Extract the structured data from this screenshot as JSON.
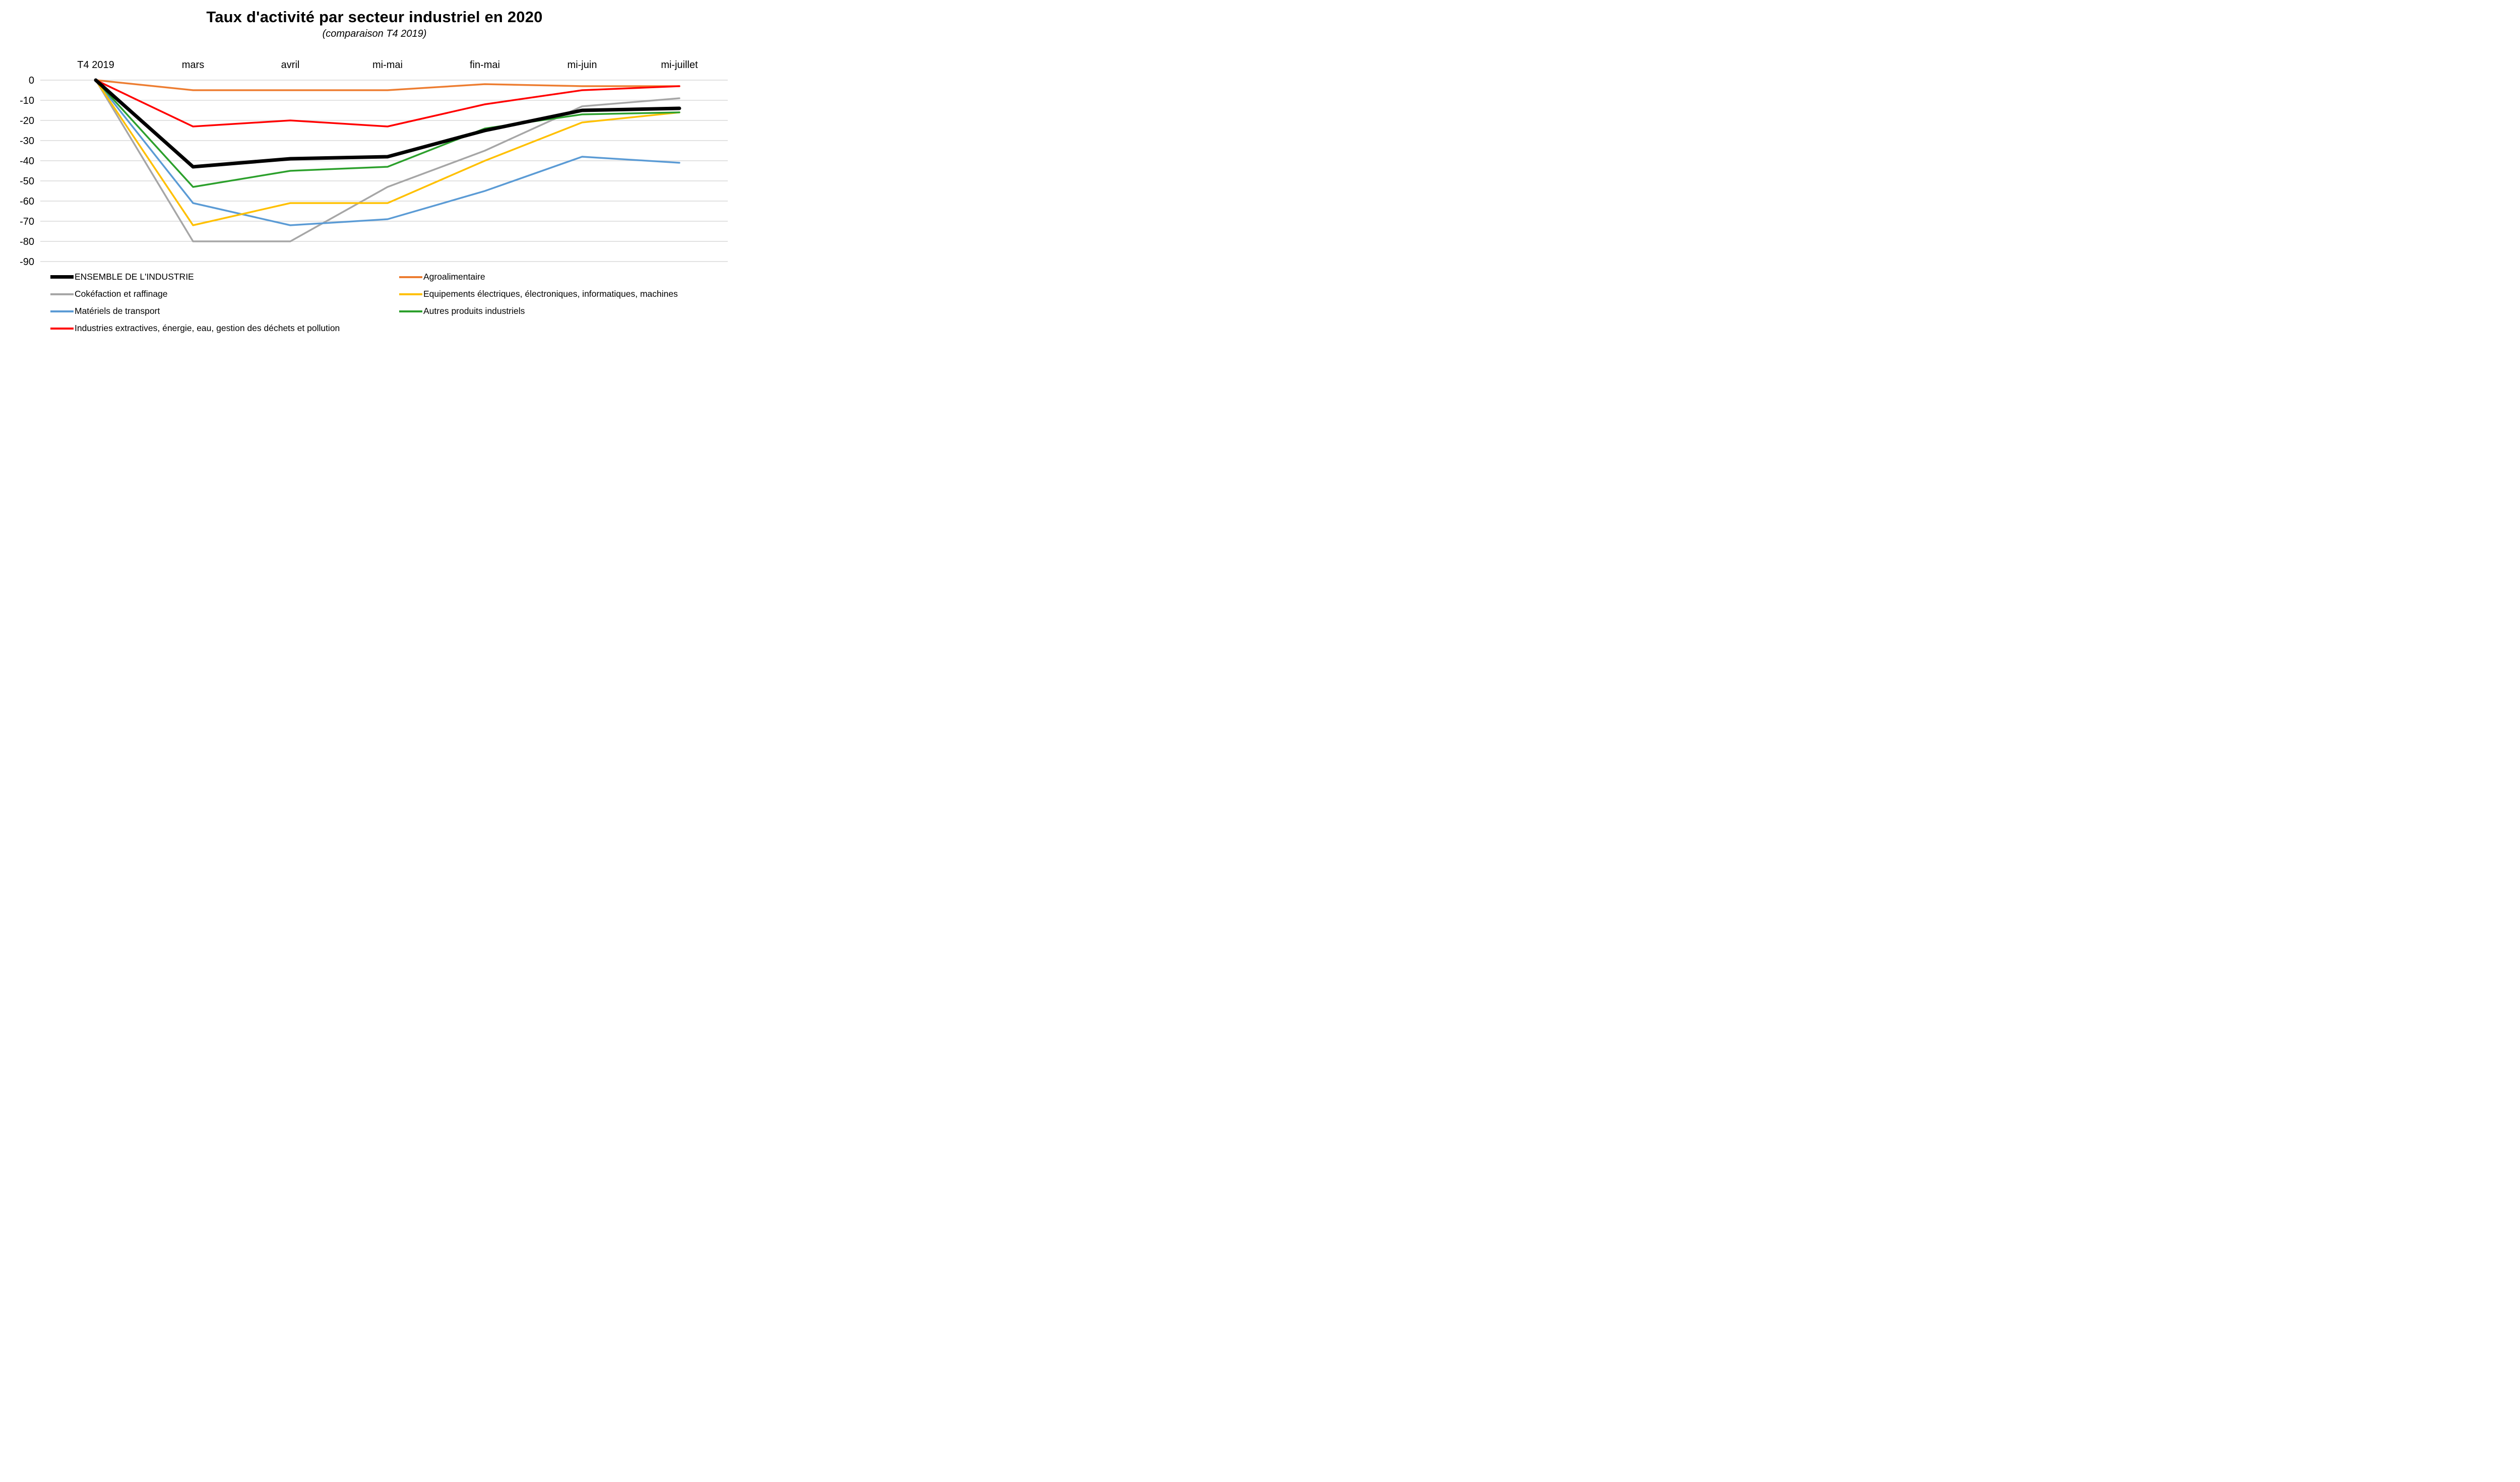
{
  "chart_data": {
    "type": "line",
    "title": "Taux d'activité par secteur industriel en 2020",
    "subtitle": "(comparaison T4 2019)",
    "categories": [
      "T4 2019",
      "mars",
      "avril",
      "mi-mai",
      "fin-mai",
      "mi-juin",
      "mi-juillet"
    ],
    "ylim": [
      -90,
      0
    ],
    "ytick_step": 10,
    "ytick_labels": [
      "0",
      "-10",
      "-20",
      "-30",
      "-40",
      "-50",
      "-60",
      "-70",
      "-80",
      "-90"
    ],
    "grid": true,
    "gridline_color": "#D9D9D9",
    "legend_position": "bottom-two-columns",
    "series": [
      {
        "name": "ENSEMBLE DE L'INDUSTRIE",
        "color": "#000000",
        "width": 7,
        "legend_column": "left",
        "values": [
          0,
          -43,
          -39,
          -38,
          -25,
          -15,
          -14
        ]
      },
      {
        "name": "Cokéfaction et raffinage",
        "color": "#A6A6A6",
        "width": 3.5,
        "legend_column": "left",
        "values": [
          0,
          -80,
          -80,
          -53,
          -35,
          -13,
          -9
        ]
      },
      {
        "name": "Matériels de transport",
        "color": "#5B9BD5",
        "width": 3.5,
        "legend_column": "left",
        "values": [
          0,
          -61,
          -72,
          -69,
          -55,
          -38,
          -41
        ]
      },
      {
        "name": "Industries extractives, énergie, eau, gestion des déchets et pollution",
        "color": "#FF0000",
        "width": 3.5,
        "legend_column": "left",
        "values": [
          0,
          -23,
          -20,
          -23,
          -12,
          -5,
          -3
        ]
      },
      {
        "name": "Agroalimentaire",
        "color": "#ED7D31",
        "width": 3.5,
        "legend_column": "right",
        "values": [
          0,
          -5,
          -5,
          -5,
          -2,
          -3,
          -3
        ]
      },
      {
        "name": "Equipements électriques, électroniques, informatiques, machines",
        "color": "#FFC000",
        "width": 3.5,
        "legend_column": "right",
        "values": [
          0,
          -72,
          -61,
          -61,
          -40,
          -21,
          -16
        ]
      },
      {
        "name": "Autres produits industriels",
        "color": "#2CA02C",
        "width": 3.5,
        "legend_column": "right",
        "values": [
          0,
          -53,
          -45,
          -43,
          -24,
          -17,
          -16
        ]
      }
    ]
  }
}
